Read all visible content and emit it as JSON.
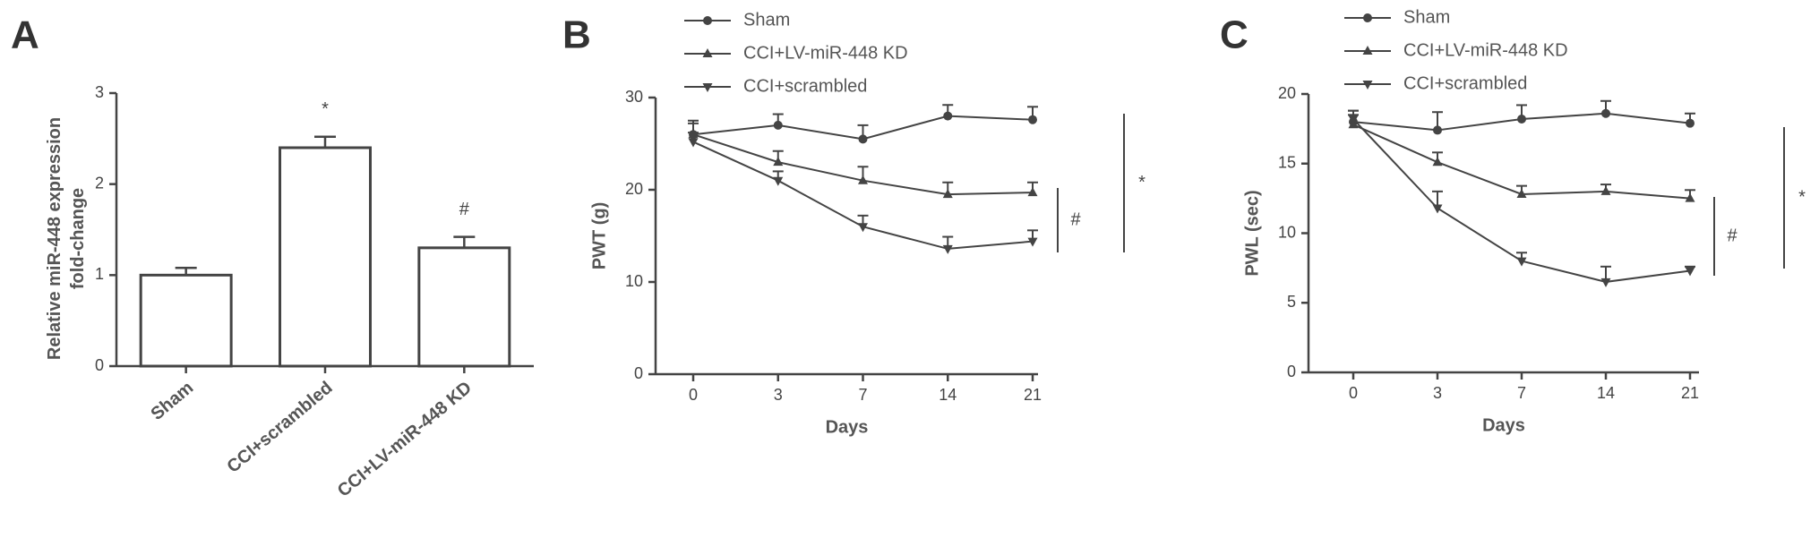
{
  "chart_data": [
    {
      "type": "bar",
      "panel": "A",
      "ylabel": [
        "Relative miR-448 expression",
        "fold-change"
      ],
      "categories": [
        "Sham",
        "CCI+scrambled",
        "CCI+LV-miR-448 KD"
      ],
      "values": [
        1.0,
        2.4,
        1.3
      ],
      "errors": [
        0.08,
        0.12,
        0.12
      ],
      "color": "#444444",
      "ylim": [
        0,
        3
      ],
      "yticks": [
        0,
        1,
        2,
        3
      ],
      "annotations": [
        {
          "text": "*",
          "category": 1
        },
        {
          "text": "#",
          "category": 2
        }
      ]
    },
    {
      "type": "line",
      "panel": "B",
      "ylabel": "PWT (g)",
      "xlabel": "Days",
      "categories": [
        "0",
        "3",
        "7",
        "14",
        "21"
      ],
      "series": [
        {
          "name": "Sham",
          "color": "#444444",
          "marker": "circle",
          "values": [
            26,
            27,
            25.5,
            28,
            27.6
          ],
          "errors": [
            1.5,
            1.2,
            1.5,
            1.2,
            1.4
          ]
        },
        {
          "name": "CCI+LV-miR-448 KD",
          "color": "#444444",
          "marker": "triangle-up",
          "values": [
            26,
            23,
            21,
            19.5,
            19.7
          ],
          "errors": [
            1.2,
            1.2,
            1.5,
            1.3,
            1.1
          ]
        },
        {
          "name": "CCI+scrambled",
          "color": "#444444",
          "marker": "triangle-down",
          "values": [
            25.2,
            21,
            16,
            13.6,
            14.4
          ],
          "errors": [
            1.0,
            1.0,
            1.2,
            1.3,
            1.2
          ]
        }
      ],
      "ylim": [
        0,
        30
      ],
      "yticks": [
        0,
        10,
        20,
        30
      ],
      "annotations": [
        {
          "text": "#"
        },
        {
          "text": "*"
        }
      ]
    },
    {
      "type": "line",
      "panel": "C",
      "ylabel": "PWL (sec)",
      "xlabel": "Days",
      "categories": [
        "0",
        "3",
        "7",
        "14",
        "21"
      ],
      "series": [
        {
          "name": "Sham",
          "color": "#444444",
          "marker": "circle",
          "values": [
            18,
            17.4,
            18.2,
            18.6,
            17.9
          ],
          "errors": [
            0.8,
            1.3,
            1.0,
            0.9,
            0.7
          ]
        },
        {
          "name": "CCI+LV-miR-448 KD",
          "color": "#444444",
          "marker": "triangle-up",
          "values": [
            17.8,
            15.1,
            12.8,
            13,
            12.5
          ],
          "errors": [
            0.7,
            0.7,
            0.6,
            0.5,
            0.6
          ]
        },
        {
          "name": "CCI+scrambled",
          "color": "#444444",
          "marker": "triangle-down",
          "values": [
            18.2,
            11.8,
            8.0,
            6.5,
            7.3
          ],
          "errors": [
            0.6,
            1.2,
            0.6,
            1.1,
            0.3
          ]
        }
      ],
      "ylim": [
        0,
        20
      ],
      "yticks": [
        0,
        5,
        10,
        15,
        20
      ],
      "annotations": [
        {
          "text": "#"
        },
        {
          "text": "*"
        }
      ]
    }
  ]
}
